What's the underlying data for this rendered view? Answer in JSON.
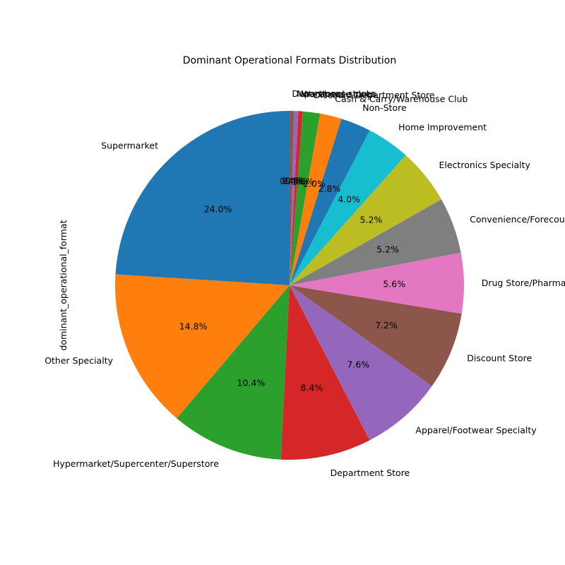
{
  "chart_data": {
    "type": "pie",
    "title": "Dominant Operational Formats Distribution",
    "ylabel": "dominant_operational_format",
    "start_angle_deg": 90,
    "direction": "counterclockwise",
    "slices": [
      {
        "label": "Supermarket",
        "value": 24.0,
        "pct_label": "24.0%",
        "color": "#1f77b4"
      },
      {
        "label": "Other Specialty",
        "value": 14.8,
        "pct_label": "14.8%",
        "color": "#ff7f0e"
      },
      {
        "label": "Hypermarket/Supercenter/Superstore",
        "value": 10.4,
        "pct_label": "10.4%",
        "color": "#2ca02c"
      },
      {
        "label": "Department Store",
        "value": 8.4,
        "pct_label": "8.4%",
        "color": "#d62728"
      },
      {
        "label": "Apparel/Footwear Specialty",
        "value": 7.6,
        "pct_label": "7.6%",
        "color": "#9467bd"
      },
      {
        "label": "Discount Store",
        "value": 7.2,
        "pct_label": "7.2%",
        "color": "#8c564b"
      },
      {
        "label": "Drug Store/Pharmacy",
        "value": 5.6,
        "pct_label": "5.6%",
        "color": "#e377c2"
      },
      {
        "label": "Convenience/Forecourt Store",
        "value": 5.2,
        "pct_label": "5.2%",
        "color": "#7f7f7f"
      },
      {
        "label": "Electronics Specialty",
        "value": 5.2,
        "pct_label": "5.2%",
        "color": "#bcbd22"
      },
      {
        "label": "Home Improvement",
        "value": 4.0,
        "pct_label": "4.0%",
        "color": "#17becf"
      },
      {
        "label": "Non-Store",
        "value": 2.8,
        "pct_label": "2.8%",
        "color": "#1f77b4"
      },
      {
        "label": "Cash & Carry/Warehouse Club",
        "value": 2.0,
        "pct_label": "2.0%",
        "color": "#ff7f0e"
      },
      {
        "label": "Discount Department Store",
        "value": 1.6,
        "pct_label": "1.6%",
        "color": "#2ca02c"
      },
      {
        "label": "Warehouse clubs",
        "value": 0.4,
        "pct_label": "0.4%",
        "color": "#d62728"
      },
      {
        "label": "Non-store",
        "value": 0.4,
        "pct_label": "0.4%",
        "color": "#9467bd"
      },
      {
        "label": "Department stores",
        "value": 0.4,
        "pct_label": "0.4%",
        "color": "#8c564b"
      }
    ]
  }
}
